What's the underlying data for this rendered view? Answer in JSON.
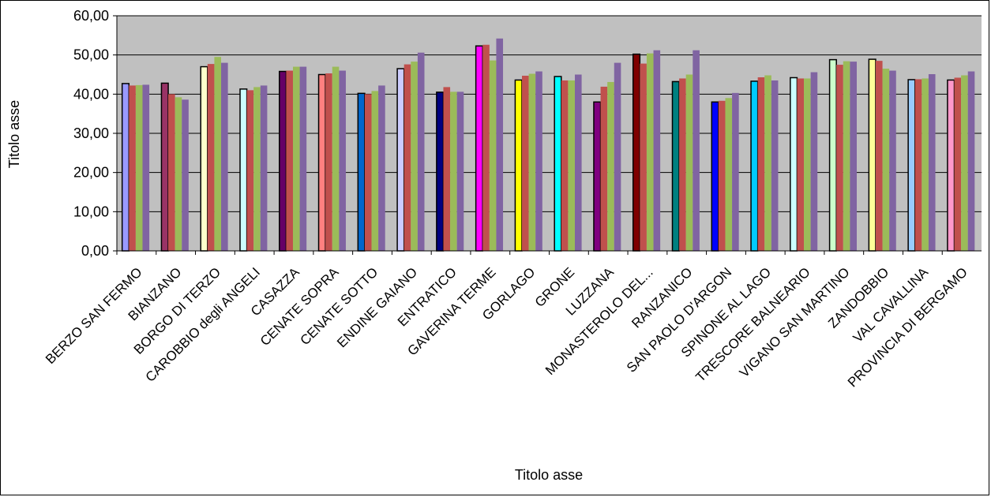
{
  "chart_data": {
    "type": "bar",
    "title": "",
    "xlabel": "Titolo asse",
    "ylabel": "Titolo asse",
    "ylim": [
      0,
      60
    ],
    "yticks": [
      "0,00",
      "10,00",
      "20,00",
      "30,00",
      "40,00",
      "50,00",
      "60,00"
    ],
    "grid": true,
    "legend": "none",
    "categories": [
      "BERZO SAN FERMO",
      "BIANZANO",
      "BORGO DI TERZO",
      "CAROBBIO degli ANGELI",
      "CASAZZA",
      "CENATE SOPRA",
      "CENATE SOTTO",
      "ENDINE GAIANO",
      "ENTRATICO",
      "GAVERINA TERME",
      "GORLAGO",
      "GRONE",
      "LUZZANA",
      "MONASTEROLO DEL...",
      "RANZANICO",
      "SAN PAOLO D'ARGON",
      "SPINONE AL LAGO",
      "TRESCORE BALNEARIO",
      "VIGANO SAN MARTINO",
      "ZANDOBBIO",
      "VAL CAVALLINA",
      "PROVINCIA DI BERGAMO"
    ],
    "first_bar_colors": [
      "#9999ff",
      "#993366",
      "#ffffcc",
      "#ccffff",
      "#660066",
      "#ff8080",
      "#0066cc",
      "#ccccff",
      "#000080",
      "#ff00ff",
      "#ffff00",
      "#00ffff",
      "#800080",
      "#800000",
      "#008080",
      "#0000ff",
      "#00ccff",
      "#ccffff",
      "#ccffcc",
      "#ffff99",
      "#99ccff",
      "#ff99cc"
    ],
    "series_colors": [
      "#c0504d",
      "#9bbb59",
      "#8064a2"
    ],
    "series": [
      {
        "values": [
          42.7,
          42.8,
          47.0,
          41.3,
          45.8,
          45.0,
          40.2,
          46.5,
          40.5,
          52.3,
          43.6,
          44.5,
          38.0,
          50.2,
          43.2,
          38.0,
          43.3,
          44.2,
          48.8,
          48.9,
          43.7,
          43.6
        ]
      },
      {
        "values": [
          42.2,
          40.0,
          47.7,
          41.0,
          46.0,
          45.3,
          40.0,
          47.6,
          41.8,
          52.6,
          44.7,
          43.5,
          41.9,
          47.8,
          44.0,
          38.3,
          44.3,
          44.0,
          47.5,
          48.5,
          43.8,
          44.2
        ]
      },
      {
        "values": [
          42.3,
          39.2,
          49.5,
          41.8,
          47.0,
          47.0,
          40.8,
          48.3,
          40.6,
          48.6,
          45.2,
          43.5,
          43.1,
          50.4,
          45.0,
          39.0,
          44.8,
          44.0,
          48.4,
          46.5,
          44.0,
          44.8
        ]
      },
      {
        "values": [
          42.4,
          38.6,
          48.0,
          42.2,
          47.0,
          46.0,
          42.2,
          50.6,
          40.6,
          54.2,
          45.8,
          45.0,
          48.0,
          51.2,
          51.2,
          40.3,
          43.5,
          45.6,
          48.3,
          46.0,
          45.1,
          45.8
        ]
      }
    ]
  }
}
